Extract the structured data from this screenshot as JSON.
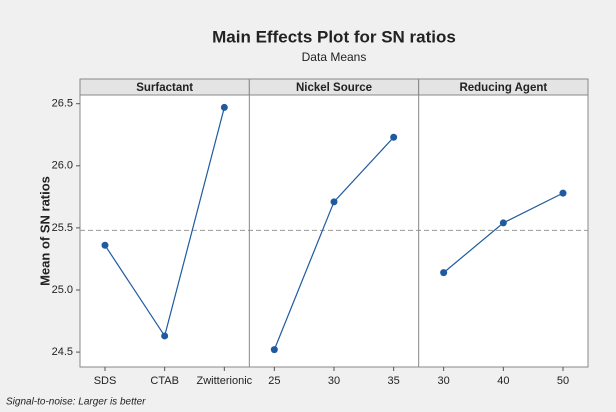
{
  "chart_data": {
    "type": "line",
    "title": "Main Effects Plot for SN ratios",
    "subtitle": "Data Means",
    "ylabel": "Mean of SN ratios",
    "footnote": "Signal-to-noise: Larger is better",
    "color": "#1f5aa0",
    "reference_line": 25.48,
    "ylim": [
      24.38,
      26.57
    ],
    "yticks": [
      24.5,
      {
        "value": 25,
        "label": "25.0"
      },
      25.5,
      {
        "value": 26,
        "label": "26.0"
      },
      26.5
    ],
    "panels": [
      {
        "name": "Surfactant",
        "categories": [
          "SDS",
          "CTAB",
          "Zwitterionic"
        ],
        "values": [
          25.36,
          24.63,
          26.47
        ]
      },
      {
        "name": "Nickel Source",
        "categories": [
          "25",
          "30",
          "35"
        ],
        "values": [
          24.52,
          25.71,
          26.23
        ]
      },
      {
        "name": "Reducing Agent",
        "categories": [
          "30",
          "40",
          "50"
        ],
        "values": [
          25.14,
          25.54,
          25.78
        ]
      }
    ]
  }
}
